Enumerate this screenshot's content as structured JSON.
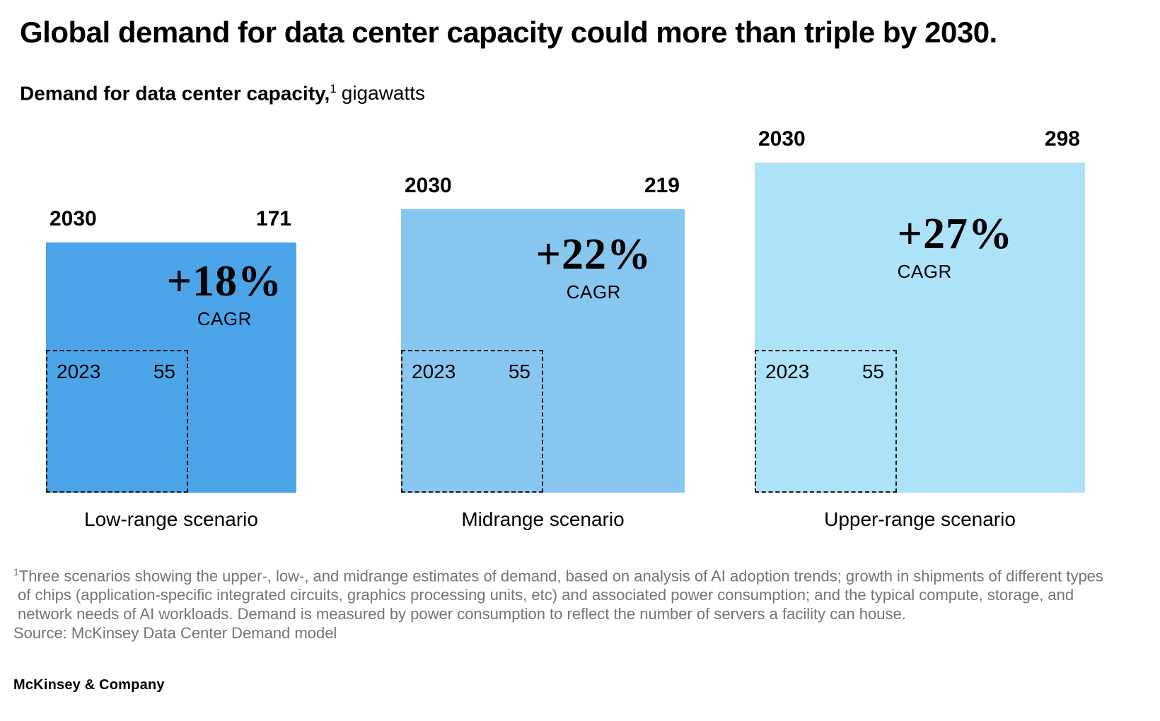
{
  "header": {
    "title": "Global demand for data center capacity could more than triple by 2030.",
    "subtitle_bold": "Demand for data center capacity,",
    "subtitle_sup": "1",
    "subtitle_rest": "gigawatts"
  },
  "chart_data": {
    "type": "proportional-area-squares",
    "title": "Demand for data center capacity, gigawatts",
    "unit": "gigawatts",
    "note": "square side length proportional to sqrt(value); all squares share a common bottom baseline",
    "scenarios": [
      {
        "label": "Low-range scenario",
        "year_start": "2023",
        "start_value": 55,
        "year_end": "2030",
        "end_value": 171,
        "cagr": "+18%",
        "cagr_label": "CAGR",
        "color": "#4BA4E8"
      },
      {
        "label": "Midrange scenario",
        "year_start": "2023",
        "start_value": 55,
        "year_end": "2030",
        "end_value": 219,
        "cagr": "+22%",
        "cagr_label": "CAGR",
        "color": "#87C7EF"
      },
      {
        "label": "Upper-range scenario",
        "year_start": "2023",
        "start_value": 55,
        "year_end": "2030",
        "end_value": 298,
        "cagr": "+27%",
        "cagr_label": "CAGR",
        "color": "#AEE2F9"
      }
    ]
  },
  "footnote": {
    "marker": "1",
    "lines": [
      "Three scenarios showing the upper-, low-, and midrange estimates of demand, based on analysis of AI adoption trends; growth in shipments of different types",
      "of chips (application-specific integrated circuits, graphics processing units, etc) and associated power consumption; and the typical compute, storage, and",
      "network needs of AI workloads. Demand is measured by power consumption to reflect the number of servers a facility can house."
    ],
    "source": "Source: McKinsey Data Center Demand model"
  },
  "footer": {
    "logo": "McKinsey & Company"
  }
}
